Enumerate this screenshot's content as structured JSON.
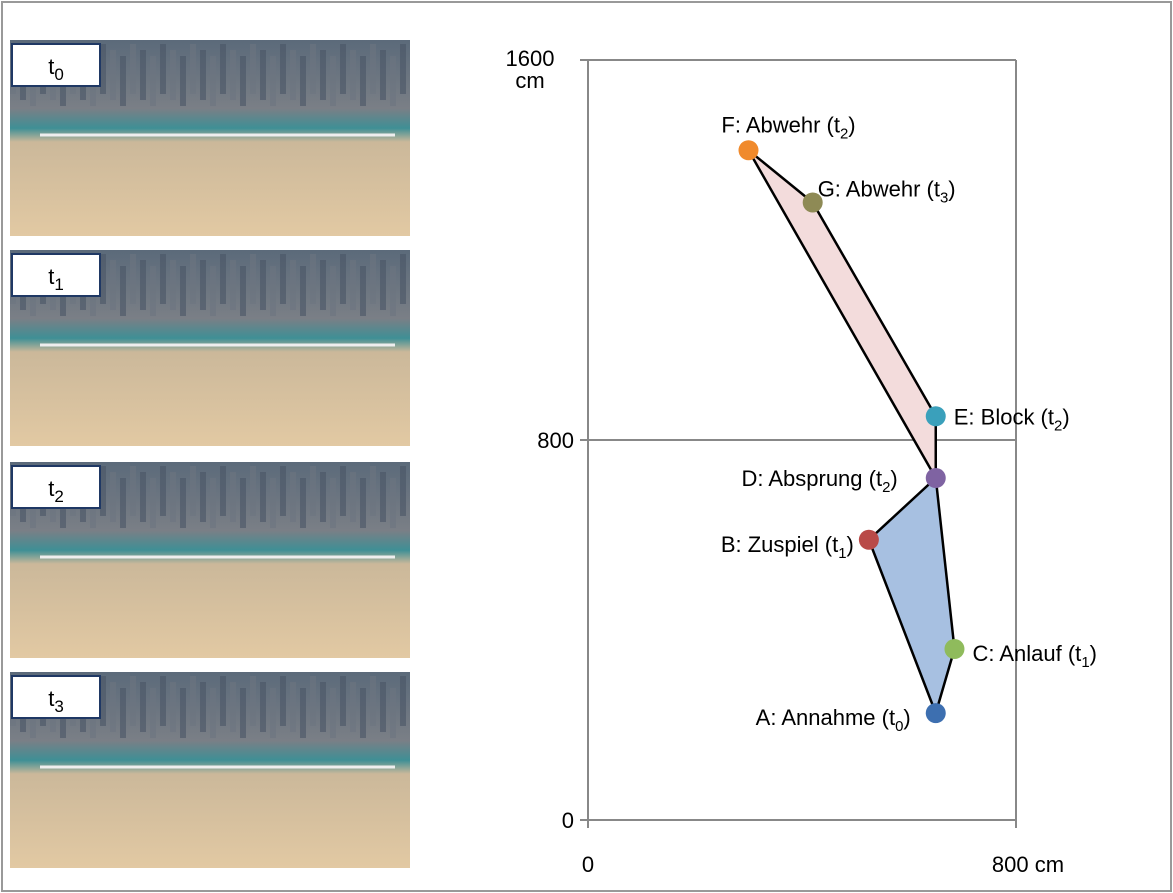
{
  "panels": [
    {
      "label": [
        "t",
        "0"
      ]
    },
    {
      "label": [
        "t",
        "1"
      ]
    },
    {
      "label": [
        "t",
        "2"
      ]
    },
    {
      "label": [
        "t",
        "3"
      ]
    }
  ],
  "chart_data": {
    "type": "scatter",
    "points": [
      {
        "label": [
          "A: Annahme (t",
          "0",
          ")"
        ],
        "x": 650,
        "y": 225,
        "color": "#3d6fb0"
      },
      {
        "label": [
          "B: Zuspiel (t",
          "1",
          ")"
        ],
        "x": 525,
        "y": 590,
        "color": "#b94a48"
      },
      {
        "label": [
          "C: Anlauf (t",
          "1",
          ")"
        ],
        "x": 685,
        "y": 360,
        "color": "#8fbb5c"
      },
      {
        "label": [
          "D: Absprung (t",
          "2",
          ")"
        ],
        "x": 650,
        "y": 720,
        "color": "#7f63a2"
      },
      {
        "label": [
          "E: Block (t",
          "2",
          ")"
        ],
        "x": 650,
        "y": 850,
        "color": "#3aa0bb"
      },
      {
        "label": [
          "F: Abwehr (t",
          "2",
          ")"
        ],
        "x": 300,
        "y": 1410,
        "color": "#f08a2c"
      },
      {
        "label": [
          "G: Abwehr (t",
          "3",
          ")"
        ],
        "x": 420,
        "y": 1300,
        "color": "#8e8a55"
      }
    ],
    "xlim": [
      0,
      800
    ],
    "xticks": [
      0,
      {
        "value": 800,
        "label": "800 cm"
      }
    ],
    "ylim": [
      0,
      1600
    ],
    "yticks": [
      0,
      800,
      {
        "value": 1600,
        "label": "1600 cm"
      }
    ],
    "grid": true
  }
}
